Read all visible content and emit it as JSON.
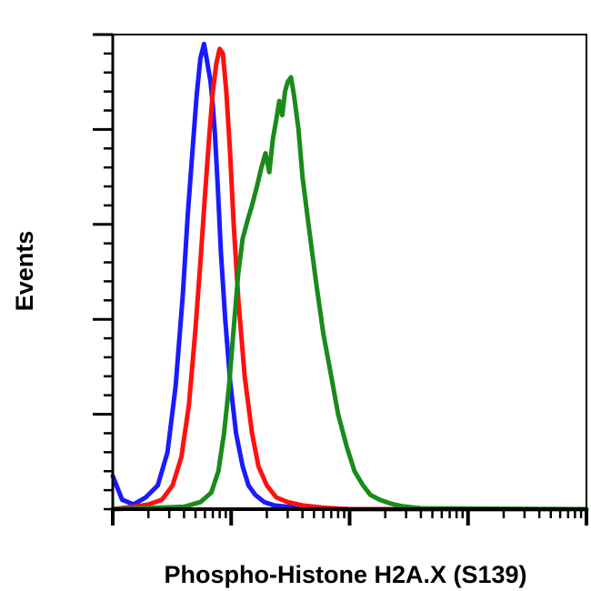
{
  "chart_data": {
    "type": "line",
    "title": "",
    "xlabel": "Phospho-Histone H2A.X (S139)",
    "ylabel": "Events",
    "x_scale": "log",
    "xlim": [
      1,
      10000
    ],
    "ylim": [
      0,
      100
    ],
    "grid": false,
    "tick_labels_shown": false,
    "series": [
      {
        "color": "#1a1aff",
        "x": [
          1.0,
          1.2,
          1.5,
          1.9,
          2.4,
          2.9,
          3.4,
          3.9,
          4.3,
          4.7,
          5.1,
          5.5,
          5.9,
          6.3,
          6.7,
          7.0,
          7.3,
          7.7,
          8.2,
          8.9,
          9.8,
          11,
          12.5,
          14,
          16,
          19,
          23,
          30,
          45,
          100,
          10000
        ],
        "values": [
          7,
          2,
          1,
          2.5,
          5,
          12,
          26,
          45,
          62,
          75,
          87,
          95,
          98,
          94,
          90,
          85,
          79,
          68,
          54,
          40,
          27,
          16,
          9,
          5,
          3,
          1.5,
          0.8,
          0.5,
          0.2,
          0,
          0
        ]
      },
      {
        "color": "#ff1010",
        "x": [
          1.0,
          1.5,
          2.0,
          2.6,
          3.2,
          3.8,
          4.4,
          5.0,
          5.5,
          6.0,
          6.5,
          7.0,
          7.5,
          8.0,
          8.5,
          9.1,
          9.8,
          10.5,
          11.5,
          13,
          15,
          17,
          20,
          24,
          30,
          40,
          60,
          100,
          10000
        ],
        "values": [
          0,
          0.5,
          1,
          2,
          5,
          11,
          22,
          38,
          52,
          66,
          78,
          88,
          94,
          97,
          96,
          88,
          75,
          60,
          44,
          28,
          16,
          9,
          5,
          2.5,
          1.5,
          0.8,
          0.3,
          0,
          0
        ]
      },
      {
        "color": "#1a8a1a",
        "x": [
          1.0,
          4.0,
          5.5,
          6.8,
          7.8,
          8.7,
          9.6,
          10.5,
          11.5,
          12.5,
          13.8,
          15,
          16.5,
          18,
          19.5,
          21,
          22.5,
          24,
          25.5,
          27,
          28.5,
          30,
          32,
          34,
          37,
          40,
          45,
          52,
          60,
          70,
          80,
          95,
          110,
          130,
          150,
          180,
          220,
          280,
          400,
          10000
        ],
        "values": [
          0,
          0.5,
          1.5,
          3.5,
          8,
          16,
          26,
          38,
          50,
          57,
          61,
          64,
          68,
          72,
          75,
          71,
          78,
          82,
          86,
          83,
          88,
          90,
          91,
          87,
          80,
          70,
          60,
          48,
          37,
          28,
          20,
          13,
          8,
          5,
          3,
          2,
          1.2,
          0.6,
          0.2,
          0
        ]
      }
    ]
  }
}
